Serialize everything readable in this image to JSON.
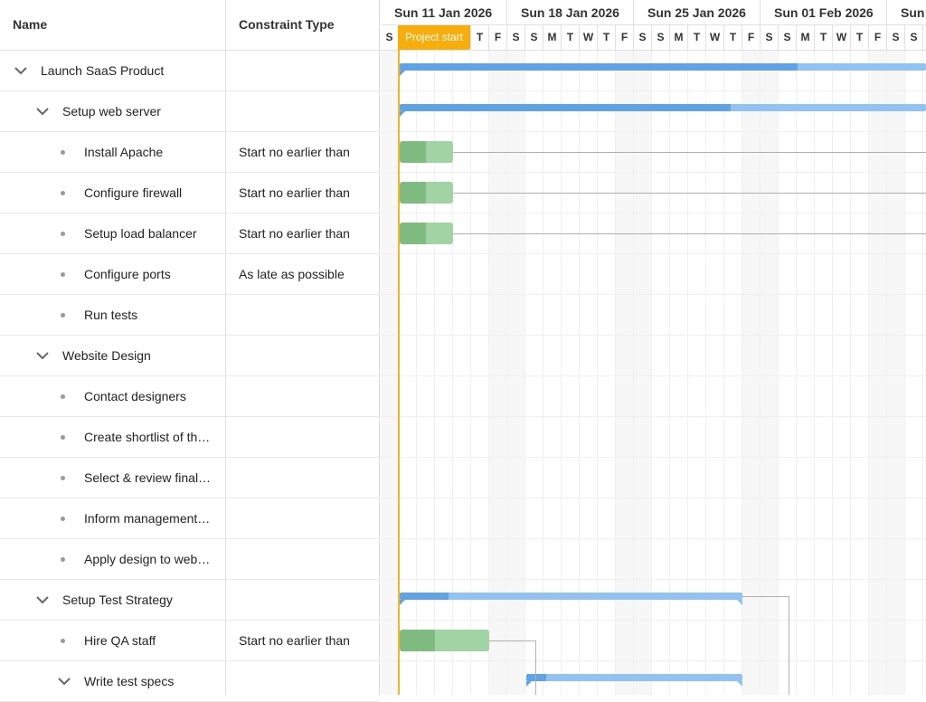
{
  "grid": {
    "columns": {
      "name": "Name",
      "constraint_type": "Constraint Type"
    },
    "rows": [
      {
        "name": "Launch SaaS Product",
        "constraint": "",
        "level": 0,
        "kind": "parent"
      },
      {
        "name": "Setup web server",
        "constraint": "",
        "level": 1,
        "kind": "parent"
      },
      {
        "name": "Install Apache",
        "constraint": "Start no earlier than",
        "level": 2,
        "kind": "leaf"
      },
      {
        "name": "Configure firewall",
        "constraint": "Start no earlier than",
        "level": 2,
        "kind": "leaf"
      },
      {
        "name": "Setup load balancer",
        "constraint": "Start no earlier than",
        "level": 2,
        "kind": "leaf"
      },
      {
        "name": "Configure ports",
        "constraint": "As late as possible",
        "level": 2,
        "kind": "leaf"
      },
      {
        "name": "Run tests",
        "constraint": "",
        "level": 2,
        "kind": "leaf"
      },
      {
        "name": "Website Design",
        "constraint": "",
        "level": 1,
        "kind": "parent"
      },
      {
        "name": "Contact designers",
        "constraint": "",
        "level": 2,
        "kind": "leaf"
      },
      {
        "name": "Create shortlist of th…",
        "constraint": "",
        "level": 2,
        "kind": "leaf"
      },
      {
        "name": "Select & review final…",
        "constraint": "",
        "level": 2,
        "kind": "leaf"
      },
      {
        "name": "Inform management…",
        "constraint": "",
        "level": 2,
        "kind": "leaf"
      },
      {
        "name": "Apply design to web…",
        "constraint": "",
        "level": 2,
        "kind": "leaf"
      },
      {
        "name": "Setup Test Strategy",
        "constraint": "",
        "level": 1,
        "kind": "parent"
      },
      {
        "name": "Hire QA staff",
        "constraint": "Start no earlier than",
        "level": 2,
        "kind": "leaf"
      },
      {
        "name": "Write test specs",
        "constraint": "",
        "level": 2,
        "kind": "parent"
      }
    ]
  },
  "timeline": {
    "weeks": [
      "Sun 11 Jan 2026",
      "Sun 18 Jan 2026",
      "Sun 25 Jan 2026",
      "Sun 01 Feb 2026",
      "Sun"
    ],
    "days": [
      "S",
      "S",
      "M",
      "T",
      "W",
      "T",
      "F",
      "S",
      "S",
      "M",
      "T",
      "W",
      "T",
      "F",
      "S",
      "S",
      "M",
      "T",
      "W",
      "T",
      "F",
      "S",
      "S",
      "M",
      "T",
      "W",
      "T",
      "F",
      "S",
      "S",
      "M"
    ],
    "project_start_label": "Project start",
    "colors": {
      "project_line": "#f5b520",
      "parent_bar": "#90c3f3",
      "parent_done": "#5fa2e6",
      "task_bar": "#a2d3a4",
      "task_done": "#80bc82"
    }
  }
}
